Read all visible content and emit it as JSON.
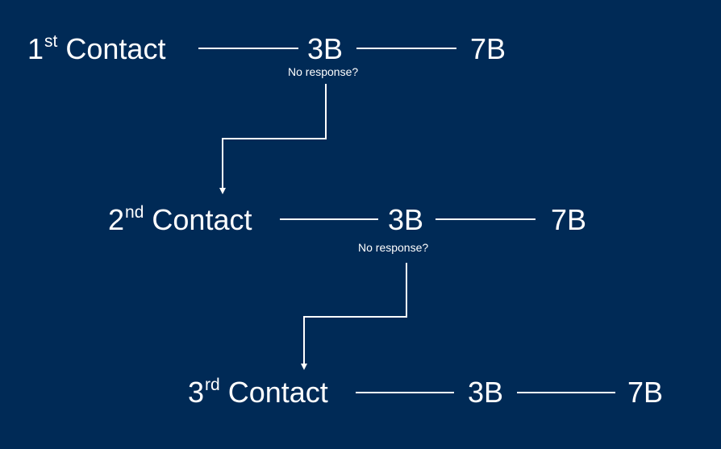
{
  "rows": [
    {
      "number": "1",
      "suffix": "st",
      "word": "Contact",
      "mid": "3B",
      "end": "7B",
      "note": "No response?"
    },
    {
      "number": "2",
      "suffix": "nd",
      "word": "Contact",
      "mid": "3B",
      "end": "7B",
      "note": "No response?"
    },
    {
      "number": "3",
      "suffix": "rd",
      "word": "Contact",
      "mid": "3B",
      "end": "7B"
    }
  ],
  "colors": {
    "background": "#002a56",
    "foreground": "#ffffff"
  }
}
